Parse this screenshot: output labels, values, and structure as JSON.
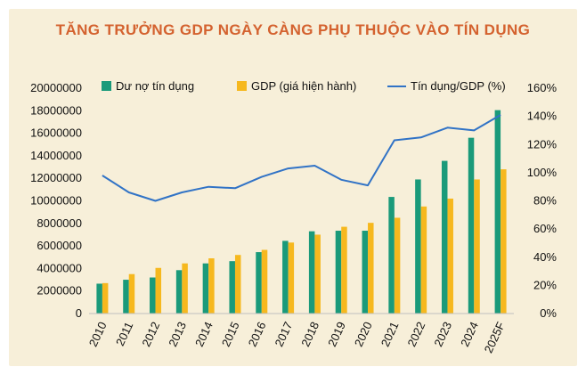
{
  "chart_data": {
    "type": "bar",
    "title": "TĂNG TRƯỞNG GDP NGÀY CÀNG PHỤ THUỘC VÀO TÍN DỤNG",
    "categories": [
      "2010",
      "2011",
      "2012",
      "2013",
      "2014",
      "2015",
      "2016",
      "2017",
      "2018",
      "2019",
      "2020",
      "2021",
      "2022",
      "2023",
      "2024",
      "2025F"
    ],
    "series": [
      {
        "name": "Dư nợ tín dụng",
        "axis": "left",
        "color": "#1a9a7a",
        "values": [
          2650000,
          3000000,
          3200000,
          3850000,
          4450000,
          4650000,
          5450000,
          6450000,
          7300000,
          7350000,
          7350000,
          10350000,
          11900000,
          13550000,
          15600000,
          18050000
        ]
      },
      {
        "name": "GDP (giá hiện hành)",
        "axis": "left",
        "color": "#f6b81e",
        "values": [
          2700000,
          3500000,
          4050000,
          4450000,
          4900000,
          5200000,
          5650000,
          6300000,
          7000000,
          7700000,
          8050000,
          8500000,
          9500000,
          10200000,
          11900000,
          12800000
        ]
      },
      {
        "name": "Tín dụng/GDP (%)",
        "axis": "right",
        "type": "line",
        "color": "#3173c6",
        "values": [
          98,
          86,
          80,
          86,
          90,
          89,
          97,
          103,
          105,
          95,
          91,
          123,
          125,
          132,
          130,
          141
        ]
      }
    ],
    "ylim_left": [
      0,
      20000000
    ],
    "yticks_left": [
      "0",
      "2000000",
      "4000000",
      "6000000",
      "8000000",
      "10000000",
      "12000000",
      "14000000",
      "16000000",
      "18000000",
      "20000000"
    ],
    "ylim_right": [
      0,
      160
    ],
    "yticks_right": [
      "0%",
      "20%",
      "40%",
      "60%",
      "80%",
      "100%",
      "120%",
      "140%",
      "160%"
    ],
    "legend_position": "top",
    "grid": false
  }
}
